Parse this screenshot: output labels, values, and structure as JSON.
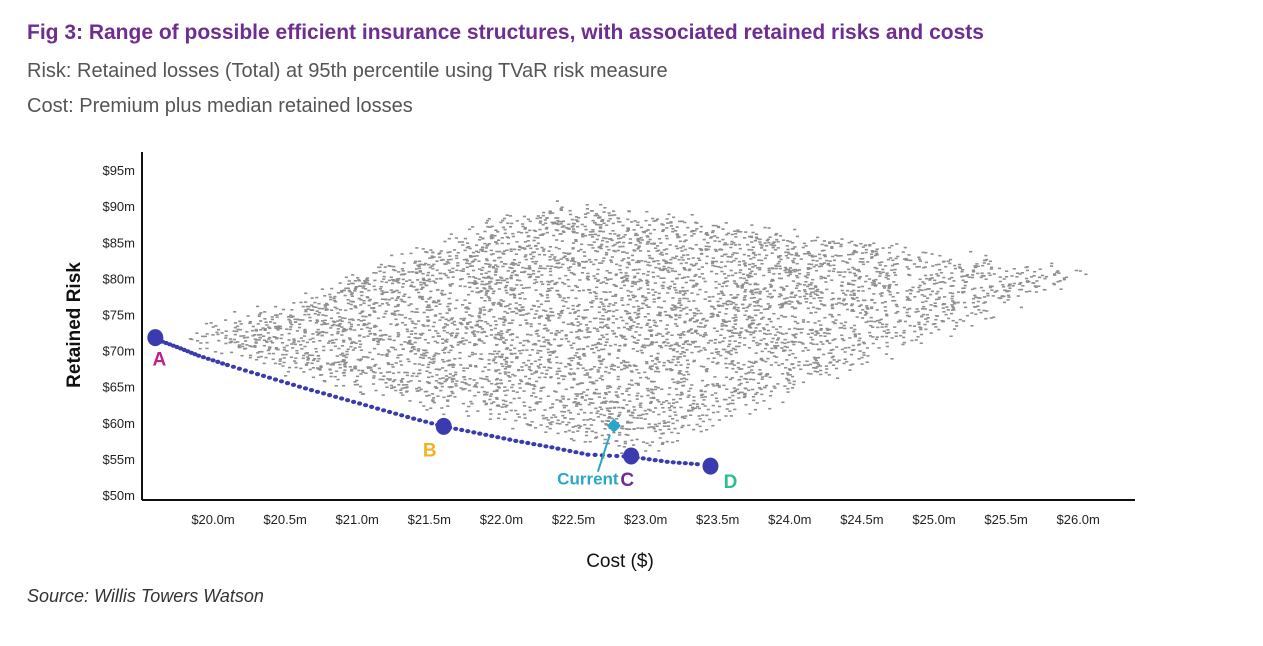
{
  "header": {
    "title": "Fig 3: Range of possible efficient insurance structures, with associated retained risks and costs",
    "subtitle_risk": "Risk: Retained losses (Total) at 95th percentile using TVaR risk measure",
    "subtitle_cost": "Cost: Premium plus median retained losses"
  },
  "source": "Source: Willis Towers Watson",
  "colors": {
    "title": "#6f2c91",
    "cloud": "#8f8f8f",
    "frontier": "#3b3bb0",
    "label_A": "#c0208a",
    "label_B": "#f5b21f",
    "label_C": "#6f2c91",
    "label_D": "#2bbf8a",
    "current": "#2aa6c8"
  },
  "chart_data": {
    "type": "scatter",
    "xlabel": "Cost ($)",
    "ylabel": "Retained Risk",
    "xlim": [
      19.5,
      26.3
    ],
    "ylim": [
      49.5,
      96
    ],
    "x_ticks": [
      20.0,
      20.5,
      21.0,
      21.5,
      22.0,
      22.5,
      23.0,
      23.5,
      24.0,
      24.5,
      25.0,
      25.5,
      26.0
    ],
    "x_tick_labels": [
      "$20.0m",
      "$20.5m",
      "$21.0m",
      "$21.5m",
      "$22.0m",
      "$22.5m",
      "$23.0m",
      "$23.5m",
      "$24.0m",
      "$24.5m",
      "$25.0m",
      "$25.5m",
      "$26.0m"
    ],
    "y_ticks": [
      50,
      55,
      60,
      65,
      70,
      75,
      80,
      85,
      90,
      95
    ],
    "y_tick_labels": [
      "$50m",
      "$55m",
      "$60m",
      "$65m",
      "$70m",
      "$75m",
      "$80m",
      "$85m",
      "$90m",
      "$95m"
    ],
    "cloud_region": {
      "corners": [
        [
          19.6,
          71.5
        ],
        [
          22.9,
          54.2
        ],
        [
          26.3,
          81.3
        ],
        [
          22.3,
          91.5
        ]
      ],
      "center": [
        22.9,
        75.0
      ]
    },
    "efficient_frontier": {
      "x": [
        19.6,
        19.75,
        19.9,
        20.1,
        20.35,
        20.6,
        20.85,
        21.1,
        21.35,
        21.6,
        21.85,
        22.1,
        22.35,
        22.6,
        22.9,
        23.15,
        23.4
      ],
      "y": [
        71.6,
        70.5,
        69.3,
        68.0,
        66.5,
        65.0,
        63.6,
        62.2,
        60.8,
        59.5,
        58.5,
        57.5,
        56.6,
        55.6,
        55.3,
        54.6,
        54.2
      ]
    },
    "labeled_points": [
      {
        "label": "A",
        "x": 19.6,
        "y": 71.8
      },
      {
        "label": "B",
        "x": 21.6,
        "y": 59.5
      },
      {
        "label": "C",
        "x": 22.9,
        "y": 55.4
      },
      {
        "label": "D",
        "x": 23.45,
        "y": 54.0
      }
    ],
    "current": {
      "label": "Current",
      "x": 22.78,
      "y": 59.6
    }
  }
}
